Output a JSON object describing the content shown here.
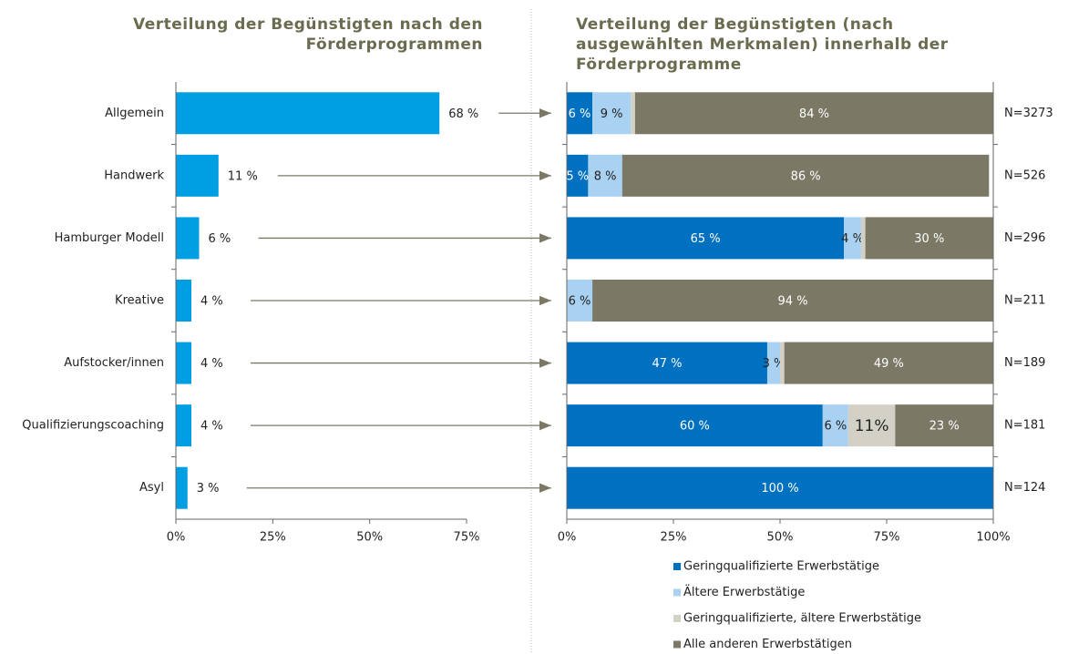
{
  "chart_data": [
    {
      "type": "bar",
      "orientation": "horizontal",
      "title": "Verteilung der Begünstigten nach den Förderprogrammen",
      "categories": [
        "Allgemein",
        "Handwerk",
        "Hamburger Modell",
        "Kreative",
        "Aufstocker/innen",
        "Qualifizierungscoaching",
        "Asyl"
      ],
      "values": [
        68,
        11,
        6,
        4,
        4,
        4,
        3
      ],
      "value_labels": [
        "68 %",
        "11 %",
        "6 %",
        "4 %",
        "4 %",
        "4 %",
        "3 %"
      ],
      "color": "#009fe3",
      "xlim": [
        0,
        75
      ],
      "xticks": [
        {
          "value": 0,
          "label": "0%"
        },
        {
          "value": 25,
          "label": "25%"
        },
        {
          "value": 50,
          "label": "50%"
        },
        {
          "value": 75,
          "label": "75%"
        }
      ]
    },
    {
      "type": "stacked_bar",
      "orientation": "horizontal",
      "title": "Verteilung der Begünstigten (nach ausgewählten Merkmalen) innerhalb der Förderprogramme",
      "categories": [
        "Allgemein",
        "Handwerk",
        "Hamburger Modell",
        "Kreative",
        "Aufstocker/innen",
        "Qualifizierungscoaching",
        "Asyl"
      ],
      "series": [
        {
          "name": "Geringqualifizierte Erwerbstätige",
          "color": "#0070c0",
          "values": [
            6,
            5,
            65,
            0,
            47,
            60,
            100
          ],
          "value_labels": [
            "6 %",
            "5 %",
            "65 %",
            null,
            "47 %",
            "60 %",
            "100 %"
          ]
        },
        {
          "name": "Ältere Erwerbstätige",
          "color": "#a9d1f2",
          "values": [
            9,
            8,
            4,
            6,
            3,
            6,
            0
          ],
          "value_labels": [
            "9 %",
            "8 %",
            "4 %",
            "6 %",
            "3 %",
            "6 %",
            null
          ]
        },
        {
          "name": "Geringqualifizierte, ältere Erwerbstätige",
          "color": "#d3d1c6",
          "values": [
            1,
            0,
            1,
            0,
            1,
            11,
            0
          ],
          "value_labels": [
            null,
            null,
            null,
            null,
            null,
            "11%",
            null
          ]
        },
        {
          "name": "Alle anderen Erwerbstätigen",
          "color": "#7b7966",
          "values": [
            84,
            86,
            30,
            94,
            49,
            23,
            0
          ],
          "value_labels": [
            "84 %",
            "86 %",
            "30 %",
            "94 %",
            "49 %",
            "23 %",
            null
          ]
        }
      ],
      "annotations": [
        "N=3273",
        "N=526",
        "N=296",
        "N=211",
        "N=189",
        "N=181",
        "N=124"
      ],
      "xlim": [
        0,
        100
      ],
      "xticks": [
        {
          "value": 0,
          "label": "0%"
        },
        {
          "value": 25,
          "label": "25%"
        },
        {
          "value": 50,
          "label": "50%"
        },
        {
          "value": 75,
          "label": "75%"
        },
        {
          "value": 100,
          "label": "100%"
        }
      ],
      "legend": "bottom"
    }
  ]
}
